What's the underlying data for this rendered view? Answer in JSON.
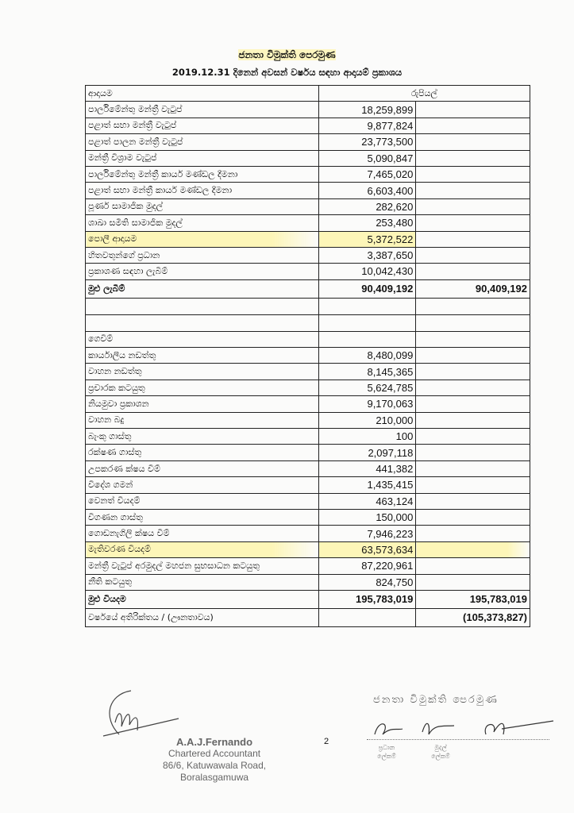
{
  "header": {
    "organization": "ජනතා විමුක්ති පෙරමුණ",
    "title": "2019.12.31  දිනෙන් අවසන් වර්ෂය සඳහා ආදායම් ප්‍රකාශය"
  },
  "table": {
    "income_header": "ආදායම",
    "currency_header": "රුපියල්",
    "income": [
      {
        "label": "පාර්ලිමේන්තු මන්ත්‍රී වැටුප්",
        "amount": "18,259,899"
      },
      {
        "label": "පළාත් සභා මන්ත්‍රී වැටුප්",
        "amount": "9,877,824"
      },
      {
        "label": "පළාත් පාලන මන්ත්‍රී වැටුප්",
        "amount": "23,773,500"
      },
      {
        "label": "මන්ත්‍රී විශ්‍රාම වැටුප්",
        "amount": "5,090,847"
      },
      {
        "label": "පාර්ලිමේන්තු මන්ත්‍රී කාර්ය මණ්ඩල දීමනා",
        "amount": "7,465,020"
      },
      {
        "label": "පළාත් සභා මන්ත්‍රී කාර්ය මණ්ඩල දීමනා",
        "amount": "6,603,400"
      },
      {
        "label": "පූර්ණ සාමාජික මුදල්",
        "amount": "282,620"
      },
      {
        "label": "ශාඛා සමිති සාමාජික මුදල්",
        "amount": "253,480"
      },
      {
        "label": "පොලී ආදායම",
        "amount": "5,372,522",
        "highlight": true
      },
      {
        "label": "හිතවතුන්ගේ ප්‍රධාන",
        "amount": "3,387,650"
      },
      {
        "label": "ප්‍රකාශණ සඳහා ලැබීම්",
        "amount": "10,042,430"
      }
    ],
    "income_total": {
      "label": "මුළු ලැබීම්",
      "amount": "90,409,192",
      "total": "90,409,192"
    },
    "expense_header": "ගෙවීම්",
    "expenses": [
      {
        "label": "කාර්යාලීය නඩත්තු",
        "amount": "8,480,099"
      },
      {
        "label": "වාහන නඩත්තු",
        "amount": "8,145,365"
      },
      {
        "label": "ප්‍රචාරක කටයුතු",
        "amount": "5,624,785"
      },
      {
        "label": "නියමුවා ප්‍රකාශන",
        "amount": "9,170,063"
      },
      {
        "label": "වාහන බදු",
        "amount": "210,000"
      },
      {
        "label": "බැංකු ගාස්තු",
        "amount": "100"
      },
      {
        "label": "රක්ෂණ ගාස්තු",
        "amount": "2,097,118"
      },
      {
        "label": "උපකරණ ක්ෂය වීම්",
        "amount": "441,382"
      },
      {
        "label": "විදේශ ගමන්",
        "amount": "1,435,415"
      },
      {
        "label": "වෙනත් වියදම්",
        "amount": "463,124"
      },
      {
        "label": "විගණන ගාස්තු",
        "amount": "150,000"
      },
      {
        "label": "ගොඩනැගිලි ක්ෂය වීම්",
        "amount": "7,946,223"
      },
      {
        "label": "මැතිවරණ වියදම්",
        "amount": "63,573,634",
        "highlight": true
      },
      {
        "label": "මන්ත්‍රී වැටුප් අරමුදල් මහජන සුභසාධන කටයුතු",
        "amount": "87,220,961"
      },
      {
        "label": "නීති කටයුතු",
        "amount": "824,750"
      }
    ],
    "expense_total": {
      "label": "මුළු වියදම",
      "amount": "195,783,019",
      "total": "195,783,019"
    },
    "surplus": {
      "label": "වර්ෂයේ අතිරික්තය / (ඌනතාවය)",
      "total": "(105,373,827)"
    }
  },
  "footer": {
    "auditor_name": "A.A.J.Fernando",
    "auditor_title": "Chartered Accountant",
    "auditor_address1": "86/6, Katuwawala Road,",
    "auditor_address2": "Boralasgamuwa",
    "page_number": "2",
    "stamp": "ජනතා විමුක්ති පෙරමුණ",
    "signatories": [
      {
        "line1": "ප්‍රධාන",
        "line2": "ලේකම්"
      },
      {
        "line1": "මුදල්",
        "line2": "ලේකම්"
      },
      {
        "line1": "",
        "line2": ""
      }
    ]
  }
}
